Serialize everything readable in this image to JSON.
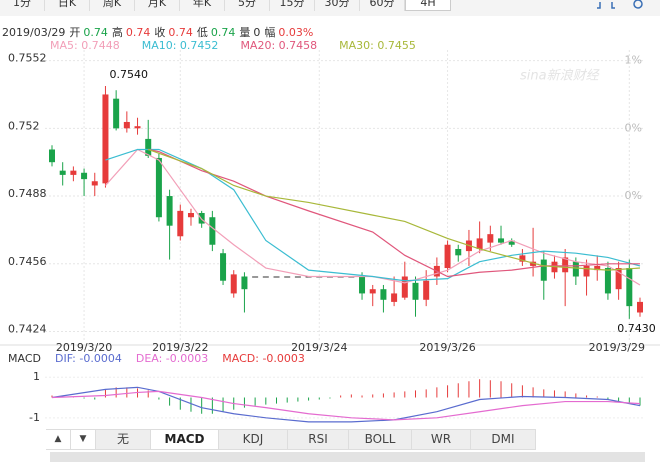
{
  "tabs": [
    "1分",
    "日K",
    "周K",
    "月K",
    "年K",
    "5分",
    "15分",
    "30分",
    "60分",
    "4H"
  ],
  "active_tab": "4H",
  "info": {
    "date": "2019/03/29",
    "items": [
      {
        "label": "开",
        "value": "0.74",
        "color": "#1aa34a"
      },
      {
        "label": "高",
        "value": "0.74",
        "color": "#e63b3b"
      },
      {
        "label": "收",
        "value": "0.74",
        "color": "#e63b3b"
      },
      {
        "label": "低",
        "value": "0.74",
        "color": "#1aa34a"
      },
      {
        "label": "量",
        "value": "0",
        "color": "#333333"
      },
      {
        "label": "幅",
        "value": "0.03%",
        "color": "#e63b3b"
      }
    ]
  },
  "indicator_tabs": [
    "无",
    "MACD",
    "KDJ",
    "RSI",
    "BOLL",
    "WR",
    "DMI"
  ],
  "active_indicator": "MACD",
  "chart_data": [
    {
      "type": "candlestick",
      "up_color": "#e63b3b",
      "down_color": "#1aa34a",
      "categories": [
        null,
        null,
        null,
        "2019/3/20",
        null,
        null,
        null,
        null,
        null,
        null,
        null,
        null,
        "2019/3/22",
        null,
        null,
        null,
        null,
        null,
        null,
        null,
        null,
        null,
        null,
        null,
        null,
        "2019/3/24",
        null,
        null,
        null,
        null,
        null,
        null,
        null,
        null,
        null,
        null,
        null,
        "2019/3/26",
        null,
        null,
        null,
        null,
        null,
        null,
        null,
        null,
        null,
        null,
        null,
        null,
        null,
        null,
        null,
        null,
        "2019/3/29",
        null
      ],
      "open": [
        0.751,
        0.75,
        0.7498,
        0.7499,
        0.7493,
        0.7494,
        0.7534,
        0.752,
        0.752,
        0.7515,
        0.7506,
        0.7488,
        0.7469,
        0.7478,
        0.748,
        0.7478,
        0.7461,
        0.7442,
        0.745,
        0.745,
        0.745,
        0.745,
        0.745,
        0.745,
        0.745,
        0.745,
        0.745,
        0.745,
        0.745,
        0.745,
        0.7442,
        0.7444,
        0.7438,
        0.744,
        0.7447,
        0.7439,
        0.745,
        0.7454,
        0.7463,
        0.7462,
        0.7463,
        0.7466,
        0.7468,
        0.7467,
        0.7457,
        0.7455,
        0.7458,
        0.7452,
        0.7452,
        0.7457,
        0.745,
        0.7453,
        0.7454,
        0.7444,
        0.7454,
        0.7433
      ],
      "high": [
        0.7512,
        0.7504,
        0.7502,
        0.7501,
        0.7499,
        0.754,
        0.7538,
        0.7528,
        0.7525,
        0.7524,
        0.7508,
        0.7491,
        0.7484,
        0.7482,
        0.7481,
        0.7481,
        0.7463,
        0.7453,
        0.7452,
        0.745,
        0.745,
        0.745,
        0.745,
        0.745,
        0.745,
        0.745,
        0.745,
        0.745,
        0.745,
        0.7452,
        0.7446,
        0.7446,
        0.745,
        0.7457,
        0.745,
        0.7453,
        0.7459,
        0.7467,
        0.7465,
        0.7472,
        0.7476,
        0.7474,
        0.7474,
        0.7468,
        0.7463,
        0.7473,
        0.7462,
        0.746,
        0.7463,
        0.7459,
        0.7458,
        0.746,
        0.7457,
        0.7457,
        0.7458,
        0.744
      ],
      "low": [
        0.7502,
        0.7493,
        0.7495,
        0.7488,
        0.7488,
        0.7492,
        0.7519,
        0.7518,
        0.7517,
        0.7506,
        0.7476,
        0.7458,
        0.7467,
        0.7474,
        0.7473,
        0.7462,
        0.7446,
        0.744,
        0.7433,
        0.745,
        0.745,
        0.745,
        0.745,
        0.745,
        0.745,
        0.745,
        0.745,
        0.745,
        0.745,
        0.7439,
        0.7436,
        0.7433,
        0.7436,
        0.7439,
        0.7431,
        0.7436,
        0.7446,
        0.7452,
        0.7457,
        0.7455,
        0.7461,
        0.7462,
        0.7465,
        0.7464,
        0.7455,
        0.745,
        0.7439,
        0.7449,
        0.7436,
        0.7446,
        0.7441,
        0.7448,
        0.7439,
        0.7439,
        0.743,
        0.7431
      ],
      "close": [
        0.7504,
        0.7498,
        0.75,
        0.7496,
        0.7495,
        0.7536,
        0.752,
        0.7523,
        0.7521,
        0.7507,
        0.7478,
        0.7474,
        0.7481,
        0.748,
        0.7475,
        0.7465,
        0.7448,
        0.7451,
        0.7444,
        0.745,
        0.745,
        0.745,
        0.745,
        0.745,
        0.745,
        0.745,
        0.745,
        0.745,
        0.745,
        0.7442,
        0.7444,
        0.7439,
        0.7442,
        0.745,
        0.7439,
        0.7448,
        0.7455,
        0.7465,
        0.746,
        0.7467,
        0.7468,
        0.747,
        0.7466,
        0.7465,
        0.746,
        0.7457,
        0.7448,
        0.7457,
        0.7459,
        0.745,
        0.7455,
        0.7455,
        0.7442,
        0.7454,
        0.7436,
        0.7438
      ],
      "series": [
        {
          "name": "MA5: 0.7448",
          "color": "#f29fb8",
          "x": [
            5,
            8,
            10,
            14,
            17,
            20,
            24,
            30,
            33,
            37,
            40,
            43,
            46,
            49,
            52,
            55
          ],
          "values": [
            0.7493,
            0.751,
            0.7505,
            0.7477,
            0.7465,
            0.7454,
            0.745,
            0.745,
            0.7447,
            0.7453,
            0.7462,
            0.7467,
            0.7461,
            0.7457,
            0.7455,
            0.7446
          ]
        },
        {
          "name": "MA10: 0.7452",
          "color": "#3bbdd1",
          "x": [
            5,
            8,
            10,
            14,
            17,
            20,
            24,
            30,
            33,
            37,
            40,
            43,
            46,
            49,
            52,
            55
          ],
          "values": [
            0.7505,
            0.751,
            0.751,
            0.7501,
            0.7491,
            0.7467,
            0.7453,
            0.745,
            0.7448,
            0.7449,
            0.7457,
            0.746,
            0.7462,
            0.7461,
            0.7459,
            0.7455
          ]
        },
        {
          "name": "MA20: 0.7458",
          "color": "#e0577c",
          "x": [
            9,
            10,
            14,
            17,
            20,
            24,
            30,
            33,
            37,
            40,
            43,
            46,
            49,
            52,
            55
          ],
          "values": [
            0.751,
            0.7509,
            0.75,
            0.7495,
            0.7488,
            0.7481,
            0.7471,
            0.746,
            0.745,
            0.7452,
            0.7453,
            0.7455,
            0.7455,
            0.7456,
            0.7456
          ]
        },
        {
          "name": "MA30: 0.7455",
          "color": "#a8b83a",
          "x": [
            9,
            14,
            17,
            20,
            24,
            30,
            33,
            37,
            40,
            43,
            46,
            49,
            52,
            55
          ],
          "values": [
            0.751,
            0.7501,
            0.7493,
            0.7488,
            0.7485,
            0.7479,
            0.7476,
            0.7468,
            0.7463,
            0.7459,
            0.7455,
            0.7454,
            0.7453,
            0.7454
          ]
        }
      ],
      "annotations": [
        {
          "text": "0.7540"
        },
        {
          "text": "0.7430"
        }
      ],
      "right_labels": [
        "1%",
        "0%",
        "0%"
      ],
      "ylim": [
        0.742,
        0.7557
      ],
      "yticks": [
        {
          "value": 0.7552,
          "label": "0.7552"
        },
        {
          "value": 0.752,
          "label": "0.752"
        },
        {
          "value": 0.7488,
          "label": "0.7488"
        },
        {
          "value": 0.7456,
          "label": "0.7456"
        },
        {
          "value": 0.7424,
          "label": "0.7424"
        }
      ],
      "grid": true
    },
    {
      "type": "macd",
      "title": "MACD",
      "histogram": {
        "name": "MACD: -0.0003",
        "up_color": "#e63b3b",
        "down_color": "#1aa34a",
        "values": [
          0.1,
          0.05,
          0.05,
          -0.05,
          -0.1,
          0.4,
          0.5,
          0.5,
          0.45,
          0.35,
          -0.1,
          -0.4,
          -0.6,
          -0.7,
          -0.8,
          -0.8,
          -0.7,
          -0.6,
          -0.5,
          -0.4,
          -0.35,
          -0.3,
          -0.25,
          -0.2,
          -0.15,
          -0.1,
          -0.05,
          0.1,
          0.15,
          0.1,
          0.15,
          0.2,
          0.25,
          0.3,
          0.35,
          0.4,
          0.5,
          0.6,
          0.7,
          0.8,
          0.9,
          0.85,
          0.8,
          0.7,
          0.6,
          0.5,
          0.4,
          0.35,
          0.3,
          0.2,
          0.1,
          0.05,
          -0.1,
          -0.2,
          -0.3,
          -0.4
        ]
      },
      "series": [
        {
          "name": "DIF: -0.0004",
          "color": "#5a6ccf",
          "x": [
            0,
            5,
            8,
            10,
            14,
            17,
            20,
            24,
            28,
            32,
            36,
            40,
            44,
            48,
            52,
            55
          ],
          "values": [
            0,
            0.4,
            0.5,
            0.3,
            -0.5,
            -0.8,
            -1.0,
            -1.2,
            -1.2,
            -1.1,
            -0.7,
            -0.1,
            0.05,
            0,
            -0.1,
            -0.4
          ]
        },
        {
          "name": "DEA: -0.0003",
          "color": "#e46bd0",
          "x": [
            0,
            5,
            8,
            10,
            14,
            17,
            20,
            24,
            28,
            32,
            36,
            40,
            44,
            48,
            52,
            55
          ],
          "values": [
            0,
            0.1,
            0.25,
            0.3,
            0,
            -0.3,
            -0.5,
            -0.8,
            -1.0,
            -1.1,
            -1.0,
            -0.7,
            -0.4,
            -0.2,
            -0.2,
            -0.3
          ]
        }
      ],
      "ylim": [
        -1.6,
        1.6
      ],
      "yticks": [
        1,
        -1
      ]
    }
  ]
}
